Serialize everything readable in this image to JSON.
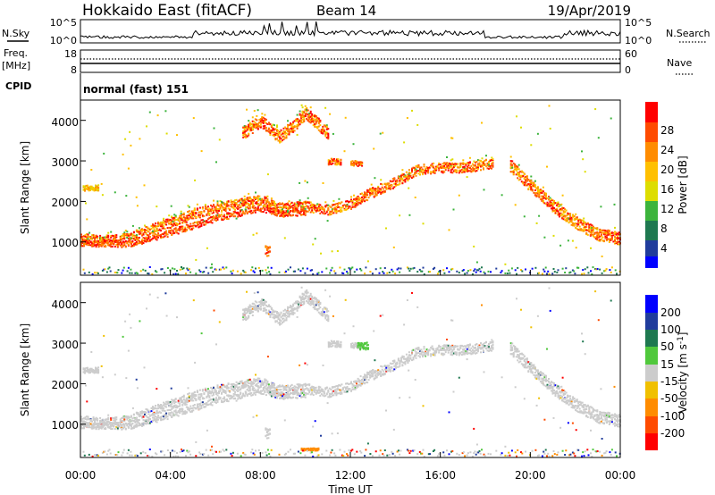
{
  "header": {
    "title": "Hokkaido East (fitACF)",
    "beam": "Beam 14",
    "date": "19/Apr/2019"
  },
  "top_panels": {
    "nsky_label": "N.Sky",
    "nsky_ticks": [
      "10^5",
      "10^0"
    ],
    "nsearch_label": "N.Search",
    "nsearch_ticks": [
      "10^5",
      "10^0"
    ],
    "freq_label": "Freq.",
    "freq_unit": "[MHz]",
    "freq_ticks": [
      "18",
      "8"
    ],
    "nave_label": "Nave",
    "nave_ticks": [
      "60",
      "0"
    ],
    "cpid_label": "CPID",
    "cpid_text": "normal (fast) 151"
  },
  "chart_data": [
    {
      "type": "heatmap",
      "name": "power",
      "ylabel": "Slant Range [km]",
      "yticks": [
        "4000",
        "3000",
        "2000",
        "1000"
      ],
      "xticks": [
        "00:00",
        "04:00",
        "08:00",
        "12:00",
        "16:00",
        "20:00",
        "00:00"
      ],
      "xlim_hours": [
        0,
        24
      ],
      "ylim_km": [
        180,
        4500
      ],
      "colorbar": {
        "label": "Power [dB]",
        "ticks": [
          "28",
          "24",
          "20",
          "16",
          "12",
          "8",
          "4"
        ],
        "colors": [
          "#ff0000",
          "#ff4b00",
          "#ff8c00",
          "#ffc000",
          "#dddd00",
          "#3cb43c",
          "#1e7850",
          "#203c9c",
          "#0000ff"
        ]
      },
      "bands": [
        {
          "x": [
            0,
            1,
            2,
            3,
            4,
            5,
            6,
            7,
            8,
            8.6,
            9,
            10,
            11,
            12,
            12.8,
            13.4,
            14,
            15,
            16,
            17,
            18.3
          ],
          "y": [
            1100,
            1050,
            1100,
            1300,
            1500,
            1700,
            1850,
            1950,
            2050,
            1900,
            1850,
            1900,
            1800,
            1950,
            2200,
            2350,
            2500,
            2800,
            2850,
            2850,
            2950
          ],
          "w": 250,
          "level": "orange"
        },
        {
          "x": [
            0,
            2,
            4,
            6,
            8,
            9,
            10
          ],
          "y": [
            1000,
            950,
            1250,
            1600,
            1850,
            1700,
            1750
          ],
          "w": 160,
          "level": "red"
        },
        {
          "x": [
            19.1,
            20,
            21,
            22,
            23,
            24
          ],
          "y": [
            2900,
            2400,
            1900,
            1500,
            1200,
            1100
          ],
          "w": 300,
          "level": "orange"
        },
        {
          "x": [
            7.2,
            8,
            8.8,
            9.5,
            10,
            11
          ],
          "y": [
            3700,
            4000,
            3600,
            3900,
            4200,
            3700
          ],
          "w": 300,
          "level": "orange"
        }
      ],
      "patches": [
        {
          "x": 0.1,
          "x2": 0.8,
          "y": 2350,
          "h": 150,
          "level": "yellow"
        },
        {
          "x": 11,
          "x2": 11.6,
          "y": 3000,
          "h": 150,
          "level": "orange"
        },
        {
          "x": 12,
          "x2": 12.5,
          "y": 2950,
          "h": 150,
          "level": "orange"
        },
        {
          "x": 8.2,
          "x2": 8.4,
          "y": 800,
          "h": 250,
          "level": "orange"
        }
      ]
    },
    {
      "type": "heatmap",
      "name": "velocity",
      "ylabel": "Slant Range [km]",
      "yticks": [
        "4000",
        "3000",
        "2000",
        "1000"
      ],
      "xticks": [
        "00:00",
        "04:00",
        "08:00",
        "12:00",
        "16:00",
        "20:00",
        "00:00"
      ],
      "xlabel": "Time UT",
      "colorbar": {
        "label": "Velocity [m s",
        "label_exp": "-1",
        "label_end": "]",
        "ticks": [
          "200",
          "100",
          "50",
          "15",
          "-15",
          "-50",
          "-100",
          "-200"
        ],
        "colors": [
          "#0000ff",
          "#203c9c",
          "#1e7850",
          "#50c83c",
          "#cccccc",
          "#f0c000",
          "#ff8c00",
          "#ff4b00",
          "#ff0000"
        ]
      },
      "patches": [
        {
          "x": 12.3,
          "x2": 12.8,
          "y": 2950,
          "h": 180,
          "level": "green"
        },
        {
          "x": 9.8,
          "x2": 10.6,
          "y": 400,
          "h": 60,
          "level": "orange"
        }
      ]
    }
  ]
}
